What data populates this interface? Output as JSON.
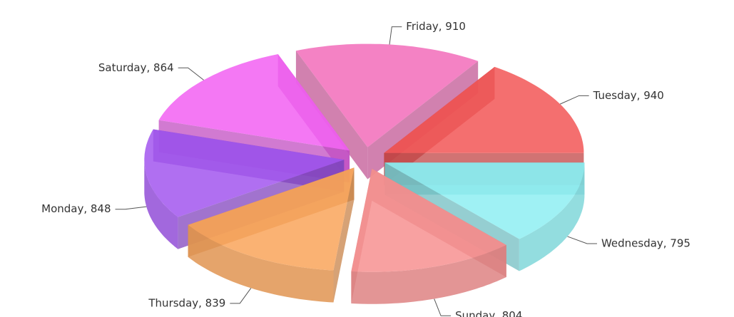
{
  "chart_data": {
    "type": "pie",
    "values": [
      795,
      804,
      839,
      848,
      864,
      910,
      940
    ],
    "value_labels": [
      "Wednesday, 795",
      "Sunday, 804",
      "Thursday, 839",
      "Monday, 848",
      "Saturday, 864",
      "Friday, 910",
      "Tuesday, 940"
    ],
    "colors": [
      "#8eeef2",
      "#f79090",
      "#f9a45a",
      "#a256ee",
      "#f260f2",
      "#f26cba",
      "#f25656"
    ]
  }
}
